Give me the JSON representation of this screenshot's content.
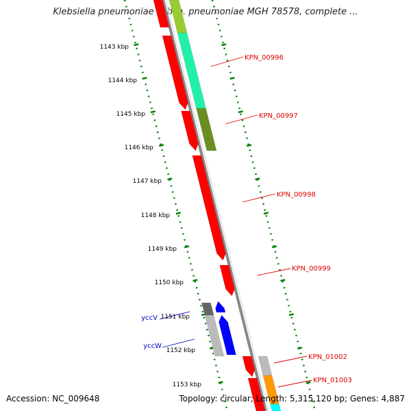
{
  "title": "Klebsiella pneumoniae subsp. pneumoniae MGH 78578, complete ...",
  "footer": {
    "accession": "Accession: NC_009648",
    "summary": "Topology: circular; Length: 5,315,120 bp; Genes: 4,887"
  },
  "colors": {
    "red": "#ff0000",
    "blue": "#0000ff",
    "mint": "#22f0a8",
    "olive": "#6b8e23",
    "lime": "#99cc33",
    "cyan": "#00ffff",
    "orange": "#ff9900",
    "gray": "#bbbbbb",
    "dark_gray": "#666666",
    "scale_green": "#008000",
    "label_red": "#dd0000",
    "label_blue": "#0000cc"
  },
  "scale": {
    "unit": "kbp",
    "ticks": [
      "1143 kbp",
      "1144 kbp",
      "1145 kbp",
      "1146 kbp",
      "1147 kbp",
      "1148 kbp",
      "1149 kbp",
      "1150 kbp",
      "1151 kbp",
      "1152 kbp",
      "1153 kbp"
    ]
  },
  "genes": [
    {
      "label": "KPN_00996",
      "label_color": "label_red"
    },
    {
      "label": "KPN_00997",
      "label_color": "label_red"
    },
    {
      "label": "KPN_00998",
      "label_color": "label_red"
    },
    {
      "label": "KPN_00999",
      "label_color": "label_red"
    },
    {
      "label": "yccV",
      "label_color": "label_blue"
    },
    {
      "label": "yccW",
      "label_color": "label_blue"
    },
    {
      "label": "KPN_01002",
      "label_color": "label_red"
    },
    {
      "label": "KPN_01003",
      "label_color": "label_red"
    }
  ]
}
